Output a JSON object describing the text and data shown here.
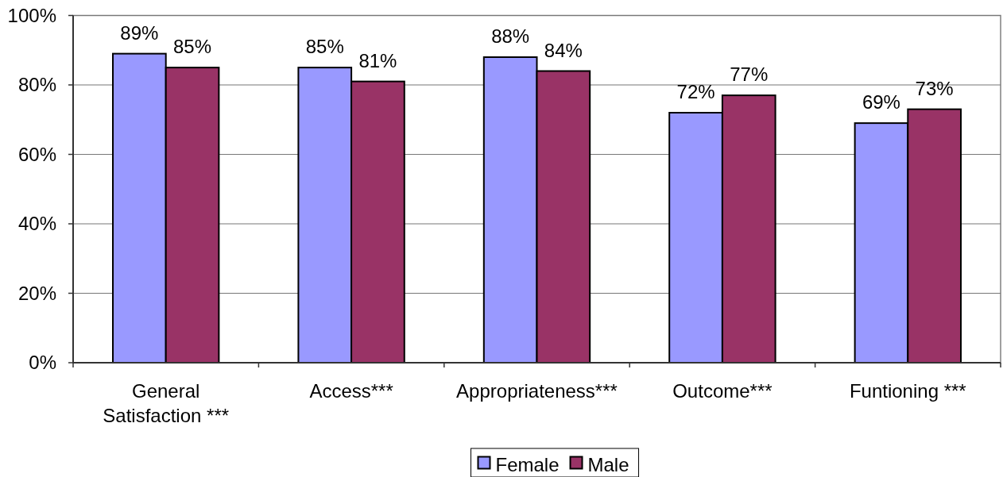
{
  "chart_data": {
    "type": "bar",
    "categories": [
      "General Satisfaction ***",
      "Access***",
      "Appropriateness***",
      "Outcome***",
      "Funtioning ***"
    ],
    "series": [
      {
        "name": "Female",
        "color": "#9999ff",
        "values": [
          89,
          85,
          88,
          72,
          69
        ],
        "value_labels": [
          "89%",
          "85%",
          "88%",
          "72%",
          "69%"
        ]
      },
      {
        "name": "Male",
        "color": "#993366",
        "values": [
          85,
          81,
          84,
          77,
          73
        ],
        "value_labels": [
          "85%",
          "81%",
          "84%",
          "77%",
          "73%"
        ]
      }
    ],
    "ylim": [
      0,
      100
    ],
    "yticks": [
      {
        "value": 0,
        "label": "0%"
      },
      {
        "value": 20,
        "label": "20%"
      },
      {
        "value": 40,
        "label": "40%"
      },
      {
        "value": 60,
        "label": "60%"
      },
      {
        "value": 80,
        "label": "80%"
      },
      {
        "value": 100,
        "label": "100%"
      }
    ],
    "grid": "y",
    "legend": "bottom"
  }
}
